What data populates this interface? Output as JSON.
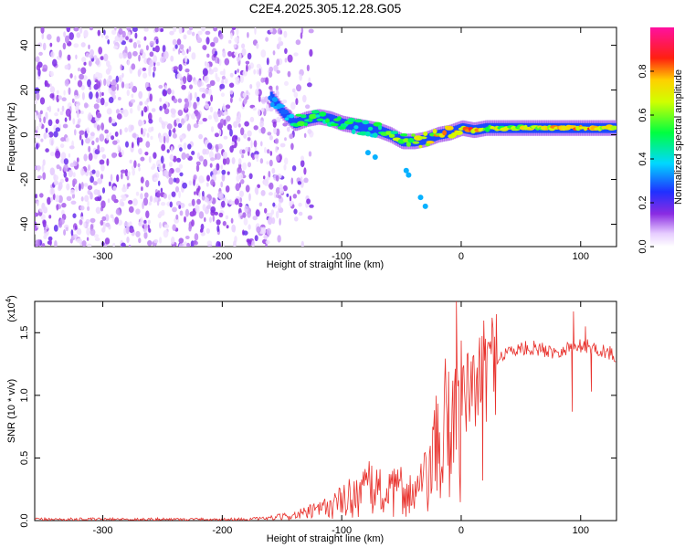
{
  "title": "C2E4.2025.305.12.28.G05",
  "chart_data": [
    {
      "type": "heatmap",
      "xlabel": "Height of straight line (km)",
      "ylabel": "Frequency (Hz)",
      "xlim": [
        -357,
        130
      ],
      "ylim": [
        -50,
        48
      ],
      "xticks": [
        -300,
        -200,
        -100,
        0,
        100
      ],
      "yticks": [
        -40,
        -20,
        0,
        20,
        40
      ],
      "colorbar": {
        "label": "Normalized spectral amplitude",
        "range": [
          0.0,
          1.0
        ],
        "ticks": [
          "0.0",
          "0.2",
          "0.4",
          "0.6",
          "0.8"
        ],
        "colormap": "rainbow (white-violet-blue-cyan-green-yellow-red-magenta)"
      },
      "signal_track": {
        "x": [
          -160,
          -150,
          -140,
          -130,
          -120,
          -110,
          -100,
          -90,
          -80,
          -70,
          -60,
          -50,
          -40,
          -30,
          -20,
          -10,
          0,
          10,
          20,
          40,
          60,
          80,
          100,
          128
        ],
        "frequency": [
          17,
          10,
          5,
          7,
          8,
          7,
          5,
          4,
          3,
          2,
          0,
          -3,
          -3,
          -2,
          0,
          1,
          3,
          2,
          3,
          3,
          3,
          3,
          3,
          3
        ],
        "amplitude": [
          0.3,
          0.35,
          0.45,
          0.55,
          0.5,
          0.5,
          0.55,
          0.5,
          0.45,
          0.5,
          0.6,
          0.6,
          0.65,
          0.7,
          0.75,
          0.8,
          0.7,
          0.85,
          0.7,
          0.65,
          0.7,
          0.75,
          0.85,
          0.65
        ]
      },
      "noise_region_x": [
        -357,
        -150
      ]
    },
    {
      "type": "line",
      "title": "",
      "xlabel": "Height of straight line (km)",
      "ylabel": "SNR (10 * v/v)",
      "yscale_note": "(x10",
      "yscale_exp": "4",
      "xlim": [
        -357,
        130
      ],
      "ylim": [
        0,
        1.75
      ],
      "xticks": [
        -300,
        -200,
        -100,
        0,
        100
      ],
      "yticks": [
        "0.0",
        "0.5",
        "1.0",
        "1.5"
      ],
      "series": [
        {
          "color": "#e8302b",
          "x": [
            -357,
            -300,
            -250,
            -200,
            -180,
            -160,
            -140,
            -120,
            -100,
            -90,
            -80,
            -70,
            -60,
            -50,
            -40,
            -30,
            -20,
            -10,
            0,
            10,
            20,
            30,
            40,
            50,
            60,
            70,
            80,
            90,
            100,
            110,
            120,
            128
          ],
          "y": [
            0.01,
            0.01,
            0.01,
            0.01,
            0.01,
            0.02,
            0.04,
            0.08,
            0.15,
            0.2,
            0.25,
            0.25,
            0.2,
            0.25,
            0.2,
            0.3,
            0.55,
            0.8,
            0.95,
            1.05,
            1.2,
            1.3,
            1.35,
            1.37,
            1.38,
            1.36,
            1.35,
            1.38,
            1.4,
            1.38,
            1.35,
            1.32
          ]
        }
      ],
      "spikes": [
        {
          "x": -4,
          "y": 1.75
        },
        {
          "x": 94,
          "y": 1.67
        },
        {
          "x": 104,
          "y": 1.55
        },
        {
          "x": 93,
          "y": 0.87
        },
        {
          "x": 109,
          "y": 1.03
        },
        {
          "x": 18,
          "y": 0.32
        }
      ]
    }
  ]
}
